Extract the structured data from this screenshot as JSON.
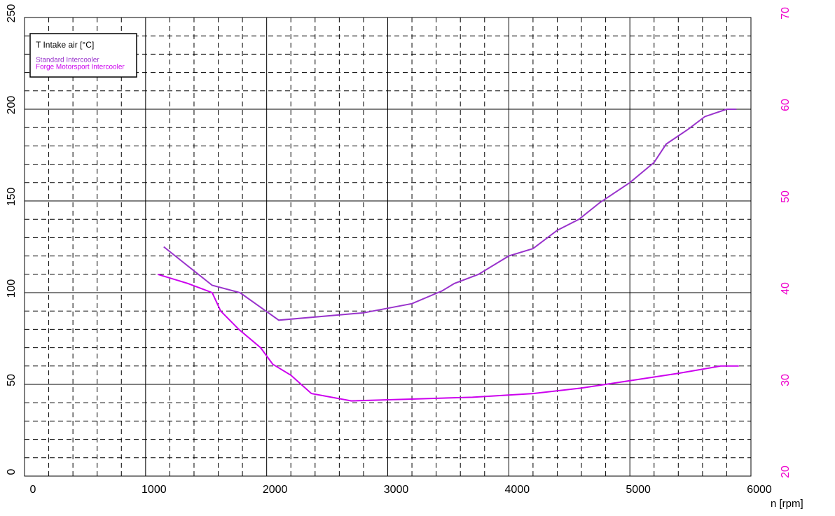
{
  "chart_data": {
    "type": "line",
    "legend_title": "T Intake air [°C]",
    "x_label": "n [rpm]",
    "series": [
      {
        "name": "Standard Intercooler",
        "color": "#9933cc",
        "x": [
          1150,
          1550,
          1780,
          2100,
          2800,
          3200,
          3450,
          3550,
          3750,
          4000,
          4200,
          4400,
          4580,
          4750,
          5000,
          5200,
          5300,
          5480,
          5620,
          5800,
          5880
        ],
        "values": [
          125,
          104,
          100,
          85,
          89,
          94,
          101,
          105,
          110,
          120,
          124,
          134,
          140,
          149,
          160,
          171,
          181,
          189,
          196,
          200,
          200
        ]
      },
      {
        "name": "Forge Motorsport Intercooler",
        "color": "#cc00ee",
        "x": [
          1100,
          1350,
          1550,
          1620,
          1770,
          1950,
          2050,
          2200,
          2370,
          2700,
          3200,
          3700,
          4200,
          4600,
          5000,
          5400,
          5750,
          5900
        ],
        "values": [
          110,
          105,
          100,
          90,
          80,
          70,
          61,
          55,
          45,
          41,
          42,
          43,
          45,
          48,
          52,
          56,
          60,
          60
        ]
      }
    ],
    "xlim": [
      0,
      6000
    ],
    "xticks": [
      0,
      1000,
      2000,
      3000,
      4000,
      5000,
      6000
    ],
    "xminorticks": [
      200,
      400,
      600,
      800,
      1200,
      1400,
      1600,
      1800,
      2200,
      2400,
      2600,
      2800,
      3200,
      3400,
      3600,
      3800,
      4200,
      4400,
      4600,
      4800,
      5200,
      5400,
      5600,
      5800
    ],
    "ylim": [
      0,
      250
    ],
    "yticks": [
      0,
      50,
      100,
      150,
      200,
      250
    ],
    "yminorticks": [
      10,
      20,
      30,
      40,
      60,
      70,
      80,
      90,
      110,
      120,
      130,
      140,
      160,
      170,
      180,
      190,
      210,
      220,
      230,
      240
    ],
    "y2lim": [
      20,
      70
    ],
    "y2ticks": [
      20,
      30,
      40,
      50,
      60,
      70
    ],
    "y2color": "#ee00cc",
    "grid": true
  }
}
